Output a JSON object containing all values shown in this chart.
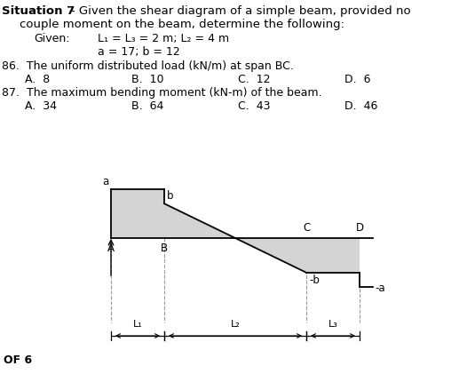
{
  "title_bold": "Situation 7",
  "title_rest": " – Given the shear diagram of a simple beam, provided no",
  "line2": "couple moment on the beam, determine the following:",
  "given_label": "Given:",
  "given_vals": "L₁ = L₃ = 2 m; L₂ = 4 m",
  "given_vals2": "a = 17; b = 12",
  "q86": "86.  The uniform distributed load (kN/m) at span BC.",
  "q86_opts": [
    "A.  8",
    "B.  10",
    "C.  12",
    "D.  6"
  ],
  "q87": "87.  The maximum bending moment (kN-m) of the beam.",
  "q87_opts": [
    "A.  34",
    "B.  64",
    "C.  43",
    "D.  46"
  ],
  "footer": "OF 6",
  "a_val": 17,
  "b_val": 12,
  "bg_color": "#ffffff",
  "fill_color": "#d4d4d4",
  "line_color": "#000000",
  "dash_color": "#999999"
}
